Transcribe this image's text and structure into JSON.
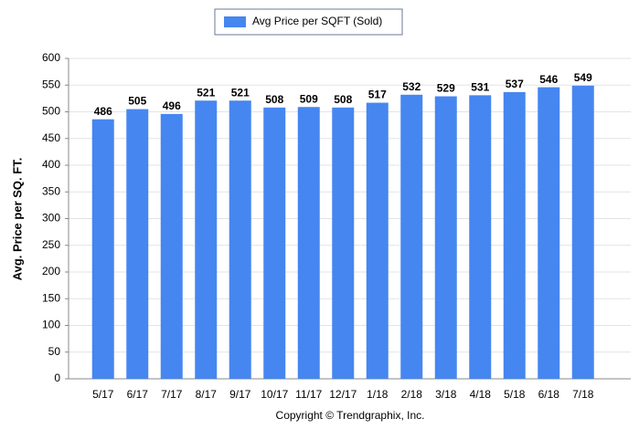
{
  "chart_data": {
    "type": "bar",
    "legend": "Avg Price per SQFT (Sold)",
    "ylabel": "Avg. Price per SQ. FT.",
    "footer": "Copyright © Trendgraphix, Inc.",
    "categories": [
      "5/17",
      "6/17",
      "7/17",
      "8/17",
      "9/17",
      "10/17",
      "11/17",
      "12/17",
      "1/18",
      "2/18",
      "3/18",
      "4/18",
      "5/18",
      "6/18",
      "7/18"
    ],
    "values": [
      486,
      505,
      496,
      521,
      521,
      508,
      509,
      508,
      517,
      532,
      529,
      531,
      537,
      546,
      549
    ],
    "color": "#4686f0",
    "ylim": [
      0,
      600
    ],
    "yticks": [
      0,
      50,
      100,
      150,
      200,
      250,
      300,
      350,
      400,
      450,
      500,
      550,
      600
    ],
    "grid": true
  }
}
